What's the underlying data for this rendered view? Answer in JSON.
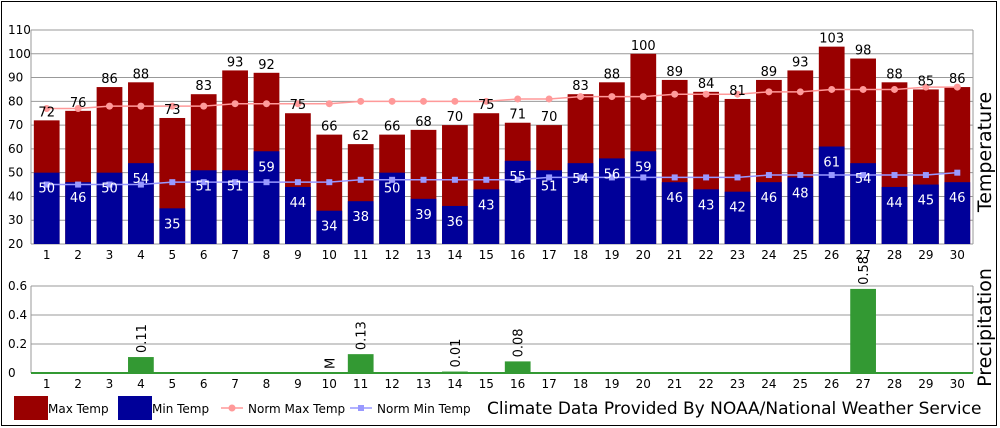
{
  "chart_data": [
    {
      "type": "bar",
      "ylabel": "Temperature",
      "ylim": [
        20,
        110
      ],
      "yticks": [
        20,
        30,
        40,
        50,
        60,
        70,
        80,
        90,
        100,
        110
      ],
      "categories": [
        "1",
        "2",
        "3",
        "4",
        "5",
        "6",
        "7",
        "8",
        "9",
        "10",
        "11",
        "12",
        "13",
        "14",
        "15",
        "16",
        "17",
        "18",
        "19",
        "20",
        "21",
        "22",
        "23",
        "24",
        "25",
        "26",
        "27",
        "28",
        "29",
        "30"
      ],
      "series": [
        {
          "name": "Max Temp",
          "type": "bar",
          "color": "#990000",
          "values": [
            72,
            76,
            86,
            88,
            73,
            83,
            93,
            92,
            75,
            66,
            62,
            66,
            68,
            70,
            75,
            71,
            70,
            83,
            88,
            100,
            89,
            84,
            81,
            89,
            93,
            103,
            98,
            88,
            85,
            86
          ]
        },
        {
          "name": "Min Temp",
          "type": "bar",
          "color": "#000099",
          "values": [
            50,
            46,
            50,
            54,
            35,
            51,
            51,
            59,
            44,
            34,
            38,
            50,
            39,
            36,
            43,
            55,
            51,
            54,
            56,
            59,
            46,
            43,
            42,
            46,
            48,
            61,
            54,
            44,
            45,
            46
          ]
        },
        {
          "name": "Norm Max Temp",
          "type": "line",
          "color": "#ff9999",
          "values": [
            77,
            77,
            78,
            78,
            78,
            78,
            79,
            79,
            79,
            79,
            80,
            80,
            80,
            80,
            80,
            81,
            81,
            82,
            82,
            82,
            83,
            83,
            83,
            84,
            84,
            85,
            85,
            85,
            86,
            86
          ]
        },
        {
          "name": "Norm Min Temp",
          "type": "line",
          "color": "#9999ff",
          "values": [
            45,
            45,
            45,
            45,
            46,
            46,
            46,
            46,
            46,
            46,
            47,
            47,
            47,
            47,
            47,
            47,
            48,
            48,
            48,
            48,
            48,
            48,
            48,
            49,
            49,
            49,
            49,
            49,
            49,
            50
          ]
        }
      ],
      "grid": true,
      "legend": "bottom-left"
    },
    {
      "type": "bar",
      "ylabel": "Precipitation",
      "ylim": [
        0,
        0.6
      ],
      "yticks": [
        "0",
        "0.2",
        "0.4",
        "0.6"
      ],
      "categories": [
        "1",
        "2",
        "3",
        "4",
        "5",
        "6",
        "7",
        "8",
        "9",
        "10",
        "11",
        "12",
        "13",
        "14",
        "15",
        "16",
        "17",
        "18",
        "19",
        "20",
        "21",
        "22",
        "23",
        "24",
        "25",
        "26",
        "27",
        "28",
        "29",
        "30"
      ],
      "series": [
        {
          "name": "Precipitation",
          "color": "#339933",
          "values": [
            0,
            0,
            0,
            0.11,
            0,
            0,
            0,
            0,
            0,
            null,
            0.13,
            0,
            0,
            0.01,
            0,
            0.08,
            0,
            0,
            0,
            0,
            0,
            0,
            0,
            0,
            0,
            0,
            0.58,
            0,
            0,
            0
          ],
          "labels": [
            "",
            "",
            "",
            "0.11",
            "",
            "",
            "",
            "",
            "",
            "M",
            "0.13",
            "",
            "",
            "0.01",
            "",
            "0.08",
            "",
            "",
            "",
            "",
            "",
            "",
            "",
            "",
            "",
            "",
            "0.58",
            "",
            "",
            ""
          ]
        }
      ],
      "grid": true
    }
  ],
  "legend": [
    {
      "label": "Max Temp",
      "color": "#990000",
      "kind": "box"
    },
    {
      "label": "Min Temp",
      "color": "#000099",
      "kind": "box"
    },
    {
      "label": "Norm Max Temp",
      "color": "#ff9999",
      "kind": "line-circle"
    },
    {
      "label": "Norm Min Temp",
      "color": "#9999ff",
      "kind": "line-square"
    }
  ],
  "credit": "Climate Data Provided By NOAA/National Weather Service"
}
